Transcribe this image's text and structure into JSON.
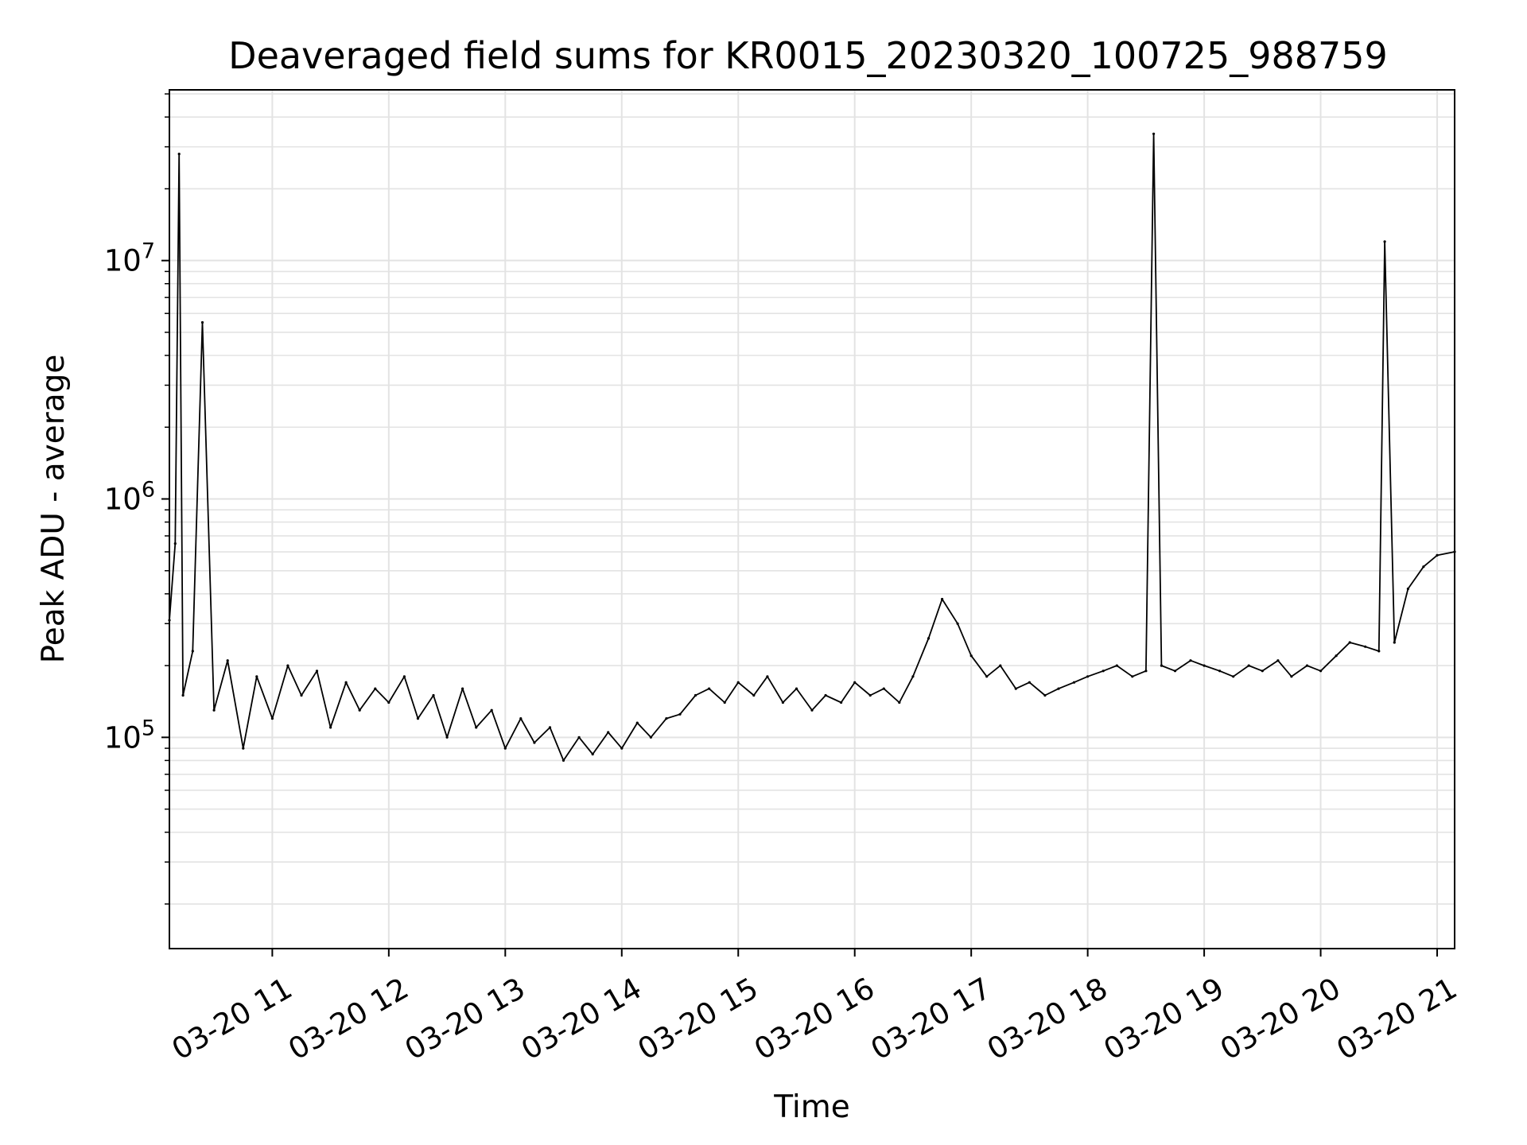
{
  "chart_data": {
    "type": "line",
    "title": "Deaveraged field sums for KR0015_20230320_100725_988759",
    "xlabel": "Time",
    "ylabel": "Peak ADU - average",
    "yscale": "log",
    "grid": true,
    "line_color": "#000000",
    "grid_color": "#e3e3e3",
    "x_tick_labels": [
      "03-20 11",
      "03-20 12",
      "03-20 13",
      "03-20 14",
      "03-20 15",
      "03-20 16",
      "03-20 17",
      "03-20 18",
      "03-20 19",
      "03-20 20",
      "03-20 21"
    ],
    "x_tick_hours": [
      11,
      12,
      13,
      14,
      15,
      16,
      17,
      18,
      19,
      20,
      21
    ],
    "y_ticks": [
      {
        "value": 100000,
        "base": "10",
        "exp": "5"
      },
      {
        "value": 1000000,
        "base": "10",
        "exp": "6"
      },
      {
        "value": 10000000,
        "base": "10",
        "exp": "7"
      }
    ],
    "xlim": [
      "2023-03-20 10:07",
      "2023-03-20 21:09"
    ],
    "ylim": [
      13000,
      52000000
    ],
    "series": [
      {
        "points": [
          [
            "2023-03-20 10:07",
            310000
          ],
          [
            "2023-03-20 10:10",
            650000
          ],
          [
            "2023-03-20 10:12",
            28000000
          ],
          [
            "2023-03-20 10:14",
            150000
          ],
          [
            "2023-03-20 10:19",
            230000
          ],
          [
            "2023-03-20 10:24",
            5500000
          ],
          [
            "2023-03-20 10:30",
            130000
          ],
          [
            "2023-03-20 10:37",
            210000
          ],
          [
            "2023-03-20 10:45",
            90000
          ],
          [
            "2023-03-20 10:52",
            180000
          ],
          [
            "2023-03-20 11:00",
            120000
          ],
          [
            "2023-03-20 11:08",
            200000
          ],
          [
            "2023-03-20 11:15",
            150000
          ],
          [
            "2023-03-20 11:23",
            190000
          ],
          [
            "2023-03-20 11:30",
            110000
          ],
          [
            "2023-03-20 11:38",
            170000
          ],
          [
            "2023-03-20 11:45",
            130000
          ],
          [
            "2023-03-20 11:53",
            160000
          ],
          [
            "2023-03-20 12:00",
            140000
          ],
          [
            "2023-03-20 12:08",
            180000
          ],
          [
            "2023-03-20 12:15",
            120000
          ],
          [
            "2023-03-20 12:23",
            150000
          ],
          [
            "2023-03-20 12:30",
            100000
          ],
          [
            "2023-03-20 12:38",
            160000
          ],
          [
            "2023-03-20 12:45",
            110000
          ],
          [
            "2023-03-20 12:53",
            130000
          ],
          [
            "2023-03-20 13:00",
            90000
          ],
          [
            "2023-03-20 13:08",
            120000
          ],
          [
            "2023-03-20 13:15",
            95000
          ],
          [
            "2023-03-20 13:23",
            110000
          ],
          [
            "2023-03-20 13:30",
            80000
          ],
          [
            "2023-03-20 13:38",
            100000
          ],
          [
            "2023-03-20 13:45",
            85000
          ],
          [
            "2023-03-20 13:53",
            105000
          ],
          [
            "2023-03-20 14:00",
            90000
          ],
          [
            "2023-03-20 14:08",
            115000
          ],
          [
            "2023-03-20 14:15",
            100000
          ],
          [
            "2023-03-20 14:23",
            120000
          ],
          [
            "2023-03-20 14:30",
            125000
          ],
          [
            "2023-03-20 14:38",
            150000
          ],
          [
            "2023-03-20 14:45",
            160000
          ],
          [
            "2023-03-20 14:53",
            140000
          ],
          [
            "2023-03-20 15:00",
            170000
          ],
          [
            "2023-03-20 15:08",
            150000
          ],
          [
            "2023-03-20 15:15",
            180000
          ],
          [
            "2023-03-20 15:23",
            140000
          ],
          [
            "2023-03-20 15:30",
            160000
          ],
          [
            "2023-03-20 15:38",
            130000
          ],
          [
            "2023-03-20 15:45",
            150000
          ],
          [
            "2023-03-20 15:53",
            140000
          ],
          [
            "2023-03-20 16:00",
            170000
          ],
          [
            "2023-03-20 16:08",
            150000
          ],
          [
            "2023-03-20 16:15",
            160000
          ],
          [
            "2023-03-20 16:23",
            140000
          ],
          [
            "2023-03-20 16:30",
            180000
          ],
          [
            "2023-03-20 16:38",
            260000
          ],
          [
            "2023-03-20 16:45",
            380000
          ],
          [
            "2023-03-20 16:53",
            300000
          ],
          [
            "2023-03-20 17:00",
            220000
          ],
          [
            "2023-03-20 17:08",
            180000
          ],
          [
            "2023-03-20 17:15",
            200000
          ],
          [
            "2023-03-20 17:23",
            160000
          ],
          [
            "2023-03-20 17:30",
            170000
          ],
          [
            "2023-03-20 17:38",
            150000
          ],
          [
            "2023-03-20 17:45",
            160000
          ],
          [
            "2023-03-20 17:53",
            170000
          ],
          [
            "2023-03-20 18:00",
            180000
          ],
          [
            "2023-03-20 18:08",
            190000
          ],
          [
            "2023-03-20 18:15",
            200000
          ],
          [
            "2023-03-20 18:23",
            180000
          ],
          [
            "2023-03-20 18:30",
            190000
          ],
          [
            "2023-03-20 18:34",
            34000000
          ],
          [
            "2023-03-20 18:38",
            200000
          ],
          [
            "2023-03-20 18:45",
            190000
          ],
          [
            "2023-03-20 18:53",
            210000
          ],
          [
            "2023-03-20 19:00",
            200000
          ],
          [
            "2023-03-20 19:08",
            190000
          ],
          [
            "2023-03-20 19:15",
            180000
          ],
          [
            "2023-03-20 19:23",
            200000
          ],
          [
            "2023-03-20 19:30",
            190000
          ],
          [
            "2023-03-20 19:38",
            210000
          ],
          [
            "2023-03-20 19:45",
            180000
          ],
          [
            "2023-03-20 19:53",
            200000
          ],
          [
            "2023-03-20 20:00",
            190000
          ],
          [
            "2023-03-20 20:08",
            220000
          ],
          [
            "2023-03-20 20:15",
            250000
          ],
          [
            "2023-03-20 20:23",
            240000
          ],
          [
            "2023-03-20 20:30",
            230000
          ],
          [
            "2023-03-20 20:33",
            12000000
          ],
          [
            "2023-03-20 20:38",
            250000
          ],
          [
            "2023-03-20 20:45",
            420000
          ],
          [
            "2023-03-20 20:53",
            520000
          ],
          [
            "2023-03-20 21:00",
            580000
          ],
          [
            "2023-03-20 21:09",
            600000
          ]
        ]
      }
    ]
  }
}
